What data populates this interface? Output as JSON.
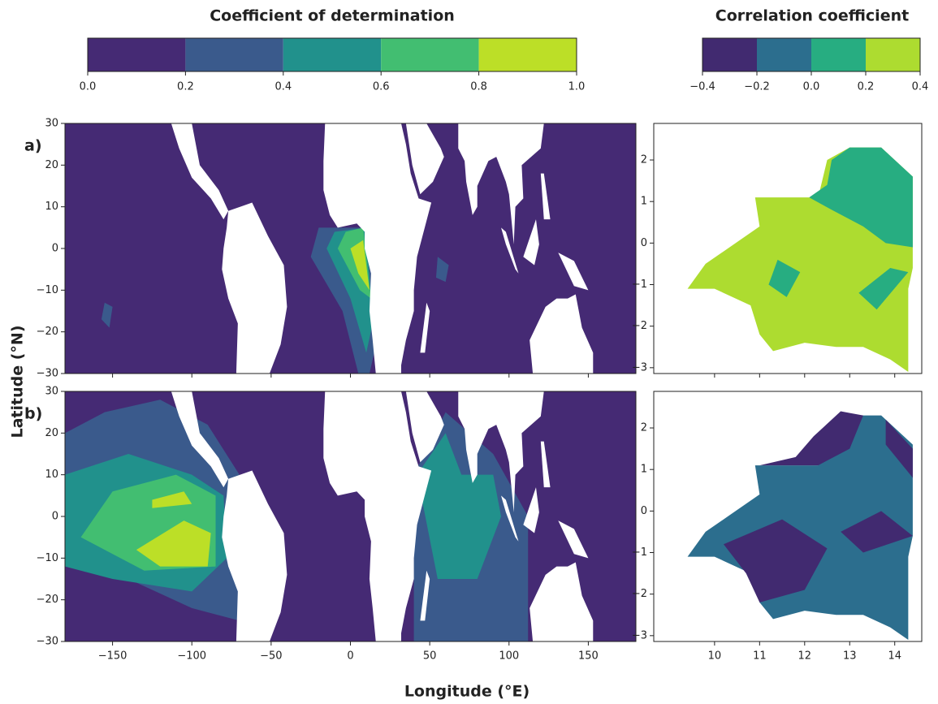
{
  "chart_data": [
    {
      "type": "colorbar",
      "title": "Coefficient of determination",
      "ticks": [
        {
          "value": 0,
          "label": "0.0"
        },
        0.2,
        0.4,
        0.6,
        0.8,
        {
          "value": 1,
          "label": "1.0"
        }
      ],
      "colors": [
        "#452a74",
        "#3a5a8c",
        "#21918c",
        "#42be71",
        "#bcdf27"
      ]
    },
    {
      "type": "colorbar",
      "title": "Correlation coefficient",
      "ticks": [
        {
          "value": -0.4,
          "label": "−0.4"
        },
        {
          "value": -0.2,
          "label": "−0.2"
        },
        {
          "value": 0,
          "label": "0.0"
        },
        0.2,
        0.4
      ],
      "colors": [
        "#412a70",
        "#2c6e8e",
        "#27ad81",
        "#addc30"
      ]
    },
    {
      "type": "contour",
      "label": "a)",
      "xlim": [
        -180,
        180
      ],
      "ylim": [
        -30,
        30
      ],
      "yticks": [
        {
          "value": -30,
          "label": "−30"
        },
        {
          "value": -20,
          "label": "−20"
        },
        {
          "value": -10,
          "label": "−10"
        },
        0,
        10,
        20,
        30
      ]
    },
    {
      "type": "contour",
      "label": "b)",
      "xlim": [
        -180,
        180
      ],
      "ylim": [
        -30,
        30
      ],
      "xticks": [
        {
          "value": -150,
          "label": "−150"
        },
        {
          "value": -100,
          "label": "−100"
        },
        {
          "value": -50,
          "label": "−50"
        },
        0,
        50,
        100,
        150
      ],
      "yticks": [
        {
          "value": -30,
          "label": "−30"
        },
        {
          "value": -20,
          "label": "−20"
        },
        {
          "value": -10,
          "label": "−10"
        },
        0,
        10,
        20,
        30
      ]
    },
    {
      "type": "contour",
      "xlim": [
        8.65,
        14.6
      ],
      "ylim": [
        -3.14,
        2.88
      ],
      "yticks": [
        {
          "value": -3,
          "label": "−3"
        },
        {
          "value": -2,
          "label": "−2"
        },
        {
          "value": -1,
          "label": "−1"
        },
        0,
        1,
        2
      ]
    },
    {
      "type": "contour",
      "xlim": [
        8.65,
        14.6
      ],
      "ylim": [
        -3.14,
        2.88
      ],
      "xticks": [
        10,
        11,
        12,
        13,
        14
      ],
      "yticks": [
        {
          "value": -3,
          "label": "−3"
        },
        {
          "value": -2,
          "label": "−2"
        },
        {
          "value": -1,
          "label": "−1"
        },
        0,
        1,
        2
      ]
    }
  ],
  "xlabel": "Longitude (°E)",
  "ylabel": "Latitude (°N)"
}
